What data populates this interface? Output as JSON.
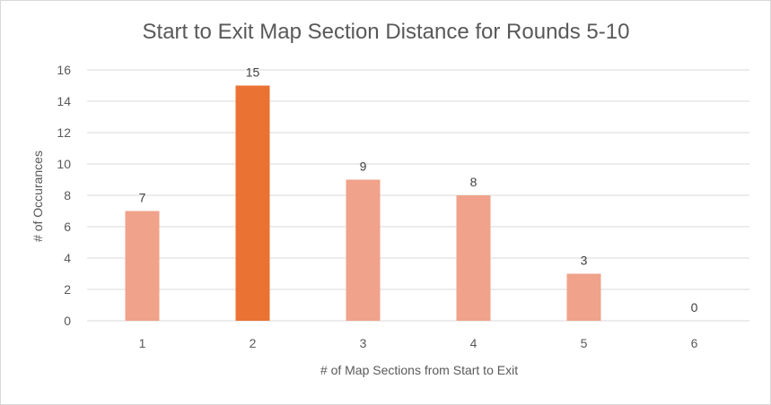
{
  "chart_data": {
    "type": "bar",
    "title": "Start to Exit Map Section Distance for Rounds 5-10",
    "xlabel": "# of Map Sections from Start to Exit",
    "ylabel": "# of Occurances",
    "categories": [
      "1",
      "2",
      "3",
      "4",
      "5",
      "6"
    ],
    "values": [
      7,
      15,
      9,
      8,
      3,
      0
    ],
    "data_labels": [
      "7",
      "15",
      "9",
      "8",
      "3",
      "0"
    ],
    "ylim": [
      0,
      16
    ],
    "yticks": [
      0,
      2,
      4,
      6,
      8,
      10,
      12,
      14,
      16
    ],
    "grid": true,
    "legend": "none",
    "colors": {
      "bar": "#F0A28A",
      "highlight": "#EA7233",
      "grid": "#D9D9D9",
      "text": "#595959"
    },
    "highlight_index": 1
  }
}
